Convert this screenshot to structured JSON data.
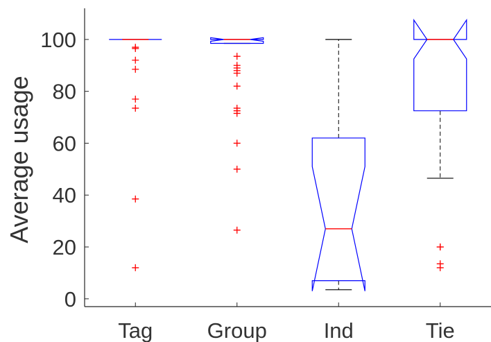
{
  "chart_data": {
    "type": "boxplot",
    "title": "",
    "xlabel": "",
    "ylabel": "Average usage",
    "ylim": [
      -3,
      112
    ],
    "yticks": [
      0,
      20,
      40,
      60,
      80,
      100
    ],
    "grid": false,
    "notched": true,
    "categories": [
      "Tag",
      "Group",
      "Ind",
      "Tie"
    ],
    "boxes": [
      {
        "category": "Tag",
        "whisker_low": 100,
        "q1": 100,
        "notch_low": 100,
        "median": 100,
        "notch_high": 100,
        "q3": 100,
        "whisker_high": 100,
        "outliers": [
          97,
          96.5,
          92,
          88.5,
          77,
          73.5,
          38.5,
          12
        ]
      },
      {
        "category": "Group",
        "whisker_low": 98.5,
        "q1": 98.5,
        "notch_low": 99.3,
        "median": 100,
        "notch_high": 100.7,
        "q3": 100,
        "whisker_high": 100,
        "outliers": [
          93.5,
          90,
          89,
          88,
          87,
          82,
          73.5,
          72.5,
          71.5,
          60,
          50,
          26.5
        ]
      },
      {
        "category": "Ind",
        "whisker_low": 3.5,
        "q1": 7,
        "notch_low": 3,
        "median": 27,
        "notch_high": 51,
        "q3": 62,
        "whisker_high": 100,
        "outliers": []
      },
      {
        "category": "Tie",
        "whisker_low": 46.5,
        "q1": 72.5,
        "notch_low": 92.5,
        "median": 100,
        "notch_high": 107.5,
        "q3": 100,
        "whisker_high": 100,
        "outliers": [
          20,
          20,
          13.5,
          12
        ]
      }
    ],
    "colors": {
      "box": "#0000ff",
      "median": "#ff0000",
      "whisker": "#000000",
      "outlier": "#ff0000",
      "axis": "#262626",
      "text": "#333333"
    }
  }
}
